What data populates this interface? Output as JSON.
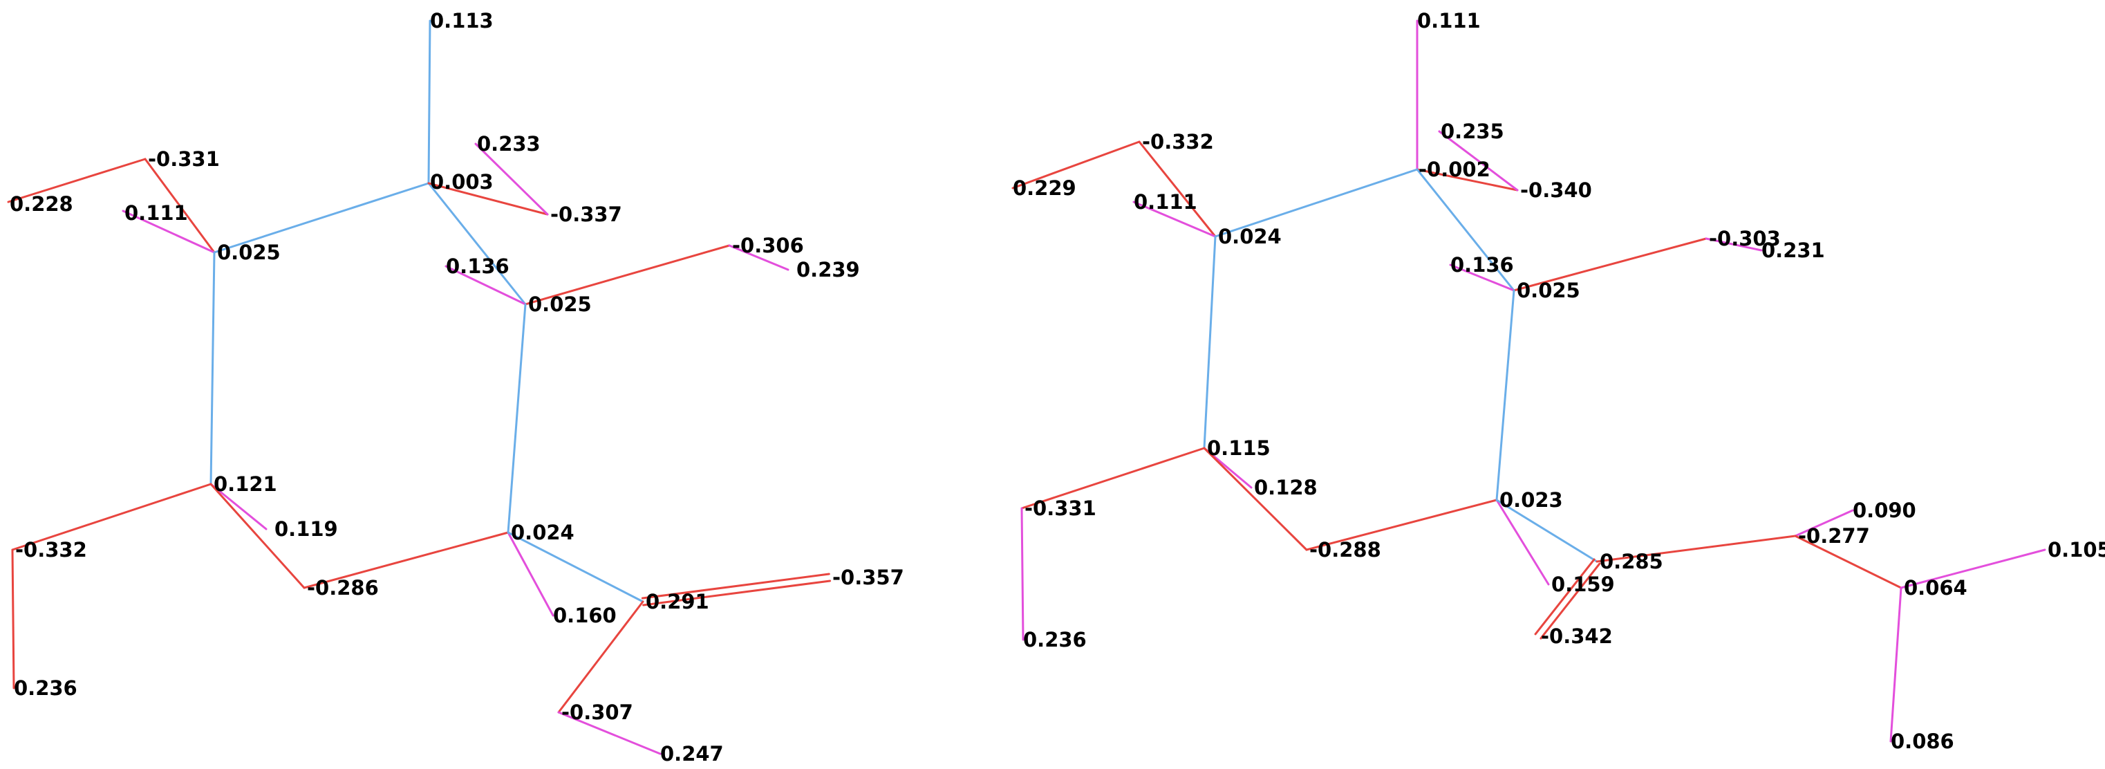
{
  "colors": {
    "background": "#ffffff",
    "carbon_bond": "#6aaee9",
    "oxygen_bond": "#e8453f",
    "hydrogen_bond": "#e34fdc",
    "label": "#000000"
  },
  "molecules": [
    {
      "atoms": [
        {
          "id": "c1",
          "label": "0.003"
        },
        {
          "id": "h1",
          "label": "0.113"
        },
        {
          "id": "o1",
          "label": "-0.337"
        },
        {
          "id": "h2",
          "label": "0.233"
        },
        {
          "id": "c2",
          "label": "0.025"
        },
        {
          "id": "o2",
          "label": "-0.331"
        },
        {
          "id": "h3",
          "label": "0.228"
        },
        {
          "id": "h4",
          "label": "0.111"
        },
        {
          "id": "c3",
          "label": "0.025"
        },
        {
          "id": "h5",
          "label": "0.136"
        },
        {
          "id": "o3",
          "label": "-0.306"
        },
        {
          "id": "h6",
          "label": "0.239"
        },
        {
          "id": "c4",
          "label": "0.121"
        },
        {
          "id": "o4",
          "label": "-0.332"
        },
        {
          "id": "h7",
          "label": "0.236"
        },
        {
          "id": "h8",
          "label": "0.119"
        },
        {
          "id": "o5",
          "label": "-0.286"
        },
        {
          "id": "c5",
          "label": "0.024"
        },
        {
          "id": "h9",
          "label": "0.160"
        },
        {
          "id": "c6",
          "label": "0.291"
        },
        {
          "id": "o6",
          "label": "-0.357"
        },
        {
          "id": "o7",
          "label": "-0.307"
        },
        {
          "id": "h10",
          "label": "0.247"
        }
      ]
    },
    {
      "atoms": [
        {
          "id": "c1",
          "label": "-0.002"
        },
        {
          "id": "h1",
          "label": "0.111"
        },
        {
          "id": "h2",
          "label": "0.235"
        },
        {
          "id": "o1",
          "label": "-0.340"
        },
        {
          "id": "o2",
          "label": "-0.332"
        },
        {
          "id": "h3",
          "label": "0.229"
        },
        {
          "id": "h4",
          "label": "0.111"
        },
        {
          "id": "c2",
          "label": "0.024"
        },
        {
          "id": "h5",
          "label": "0.136"
        },
        {
          "id": "o3",
          "label": "-0.303"
        },
        {
          "id": "h6",
          "label": "0.231"
        },
        {
          "id": "c3",
          "label": "0.025"
        },
        {
          "id": "c4",
          "label": "0.115"
        },
        {
          "id": "h7",
          "label": "0.128"
        },
        {
          "id": "o4",
          "label": "-0.331"
        },
        {
          "id": "h8",
          "label": "0.236"
        },
        {
          "id": "c5",
          "label": "0.023"
        },
        {
          "id": "o5",
          "label": "-0.288"
        },
        {
          "id": "h9",
          "label": "0.159"
        },
        {
          "id": "c6",
          "label": "0.285"
        },
        {
          "id": "o6",
          "label": "-0.342"
        },
        {
          "id": "o7",
          "label": "-0.277"
        },
        {
          "id": "h10",
          "label": "0.090"
        },
        {
          "id": "c7",
          "label": "0.064"
        },
        {
          "id": "h11",
          "label": "0.105"
        },
        {
          "id": "h12",
          "label": "0.086"
        }
      ]
    }
  ]
}
